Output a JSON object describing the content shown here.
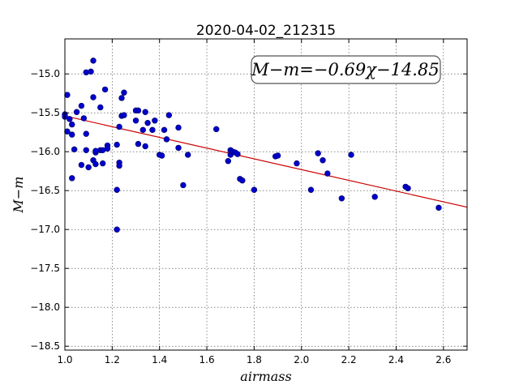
{
  "chart_data": {
    "type": "scatter",
    "title": "2020-04-02_212315",
    "xlabel": "airmass",
    "ylabel": "M−m",
    "xlim": [
      1.0,
      2.7
    ],
    "ylim": [
      -18.55,
      -14.55
    ],
    "y_inverted": true,
    "grid": true,
    "xticks": [
      1.0,
      1.2,
      1.4,
      1.6,
      1.8,
      2.0,
      2.2,
      2.4,
      2.6
    ],
    "yticks": [
      -15.0,
      -15.5,
      -16.0,
      -16.5,
      -17.0,
      -17.5,
      -18.0,
      -18.5
    ],
    "xtick_labels": [
      "1.0",
      "1.2",
      "1.4",
      "1.6",
      "1.8",
      "2.0",
      "2.2",
      "2.4",
      "2.6"
    ],
    "ytick_labels": [
      "−15.0",
      "−15.5",
      "−16.0",
      "−16.5",
      "−17.0",
      "−17.5",
      "−18.0",
      "−18.5"
    ],
    "annotation": "M−m=−0.69χ−14.85",
    "point_color": "#0000cc",
    "fit_color": "#cc0000",
    "fit": {
      "slope": -0.69,
      "intercept": -14.85
    },
    "points": [
      [
        1.0,
        -15.52
      ],
      [
        1.0,
        -15.55
      ],
      [
        1.01,
        -15.74
      ],
      [
        1.01,
        -15.27
      ],
      [
        1.02,
        -15.58
      ],
      [
        1.03,
        -15.78
      ],
      [
        1.03,
        -16.34
      ],
      [
        1.03,
        -15.65
      ],
      [
        1.04,
        -15.97
      ],
      [
        1.05,
        -15.49
      ],
      [
        1.07,
        -15.41
      ],
      [
        1.07,
        -16.17
      ],
      [
        1.08,
        -15.57
      ],
      [
        1.09,
        -15.98
      ],
      [
        1.09,
        -14.98
      ],
      [
        1.1,
        -16.2
      ],
      [
        1.09,
        -15.77
      ],
      [
        1.11,
        -14.97
      ],
      [
        1.12,
        -14.83
      ],
      [
        1.12,
        -15.3
      ],
      [
        1.12,
        -16.11
      ],
      [
        1.13,
        -16.01
      ],
      [
        1.13,
        -15.99
      ],
      [
        1.13,
        -16.16
      ],
      [
        1.15,
        -15.43
      ],
      [
        1.15,
        -15.98
      ],
      [
        1.16,
        -16.15
      ],
      [
        1.16,
        -15.98
      ],
      [
        1.17,
        -15.2
      ],
      [
        1.18,
        -15.92
      ],
      [
        1.18,
        -15.96
      ],
      [
        1.22,
        -16.49
      ],
      [
        1.22,
        -15.91
      ],
      [
        1.22,
        -17.0
      ],
      [
        1.23,
        -16.14
      ],
      [
        1.23,
        -16.18
      ],
      [
        1.23,
        -15.68
      ],
      [
        1.24,
        -15.31
      ],
      [
        1.24,
        -15.54
      ],
      [
        1.25,
        -15.53
      ],
      [
        1.25,
        -15.24
      ],
      [
        1.3,
        -15.47
      ],
      [
        1.3,
        -15.6
      ],
      [
        1.31,
        -15.47
      ],
      [
        1.31,
        -15.9
      ],
      [
        1.33,
        -15.72
      ],
      [
        1.34,
        -15.93
      ],
      [
        1.34,
        -15.49
      ],
      [
        1.35,
        -15.63
      ],
      [
        1.37,
        -15.72
      ],
      [
        1.38,
        -15.6
      ],
      [
        1.4,
        -16.04
      ],
      [
        1.41,
        -16.05
      ],
      [
        1.42,
        -15.72
      ],
      [
        1.43,
        -15.84
      ],
      [
        1.44,
        -15.53
      ],
      [
        1.48,
        -15.69
      ],
      [
        1.48,
        -15.95
      ],
      [
        1.5,
        -16.43
      ],
      [
        1.52,
        -16.04
      ],
      [
        1.64,
        -15.71
      ],
      [
        1.69,
        -16.12
      ],
      [
        1.7,
        -15.98
      ],
      [
        1.7,
        -16.04
      ],
      [
        1.71,
        -16.0
      ],
      [
        1.72,
        -16.01
      ],
      [
        1.73,
        -16.03
      ],
      [
        1.74,
        -16.35
      ],
      [
        1.75,
        -16.37
      ],
      [
        1.8,
        -16.49
      ],
      [
        1.89,
        -16.06
      ],
      [
        1.9,
        -16.05
      ],
      [
        1.98,
        -16.15
      ],
      [
        2.04,
        -16.49
      ],
      [
        2.07,
        -16.02
      ],
      [
        2.09,
        -16.11
      ],
      [
        2.11,
        -16.28
      ],
      [
        2.17,
        -16.6
      ],
      [
        2.21,
        -16.04
      ],
      [
        2.31,
        -16.58
      ],
      [
        2.44,
        -16.45
      ],
      [
        2.45,
        -16.47
      ],
      [
        2.58,
        -16.72
      ]
    ]
  }
}
